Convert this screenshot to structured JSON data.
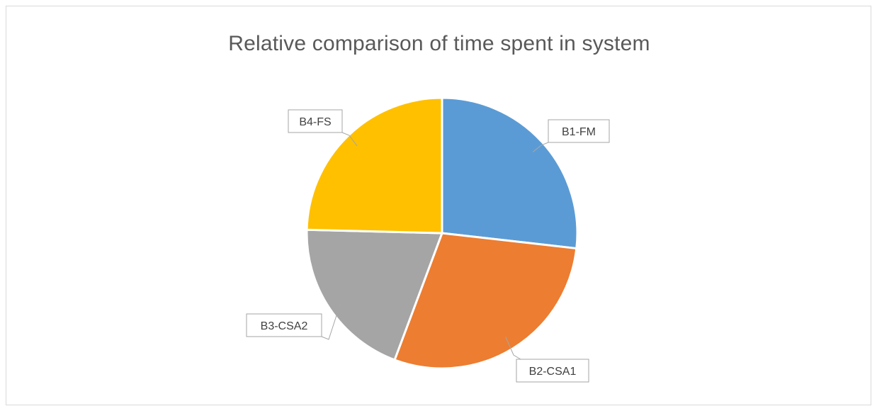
{
  "chart_data": {
    "type": "pie",
    "title": "Relative comparison of time spent in system",
    "categories": [
      "B1-FM",
      "B2-CSA1",
      "B3-CSA2",
      "B4-FS"
    ],
    "values": [
      26.8,
      28.9,
      19.7,
      24.6
    ],
    "colors": [
      "#5b9bd5",
      "#ed7d31",
      "#a5a5a5",
      "#ffc000"
    ],
    "start_angle_deg": 0,
    "direction": "clockwise",
    "legend": "none",
    "data_labels": "category name in callout boxes"
  }
}
